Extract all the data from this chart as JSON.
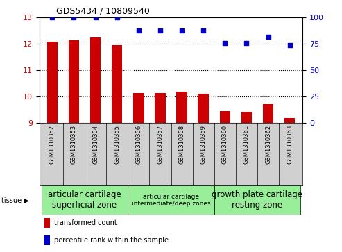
{
  "title": "GDS5434 / 10809540",
  "samples": [
    "GSM1310352",
    "GSM1310353",
    "GSM1310354",
    "GSM1310355",
    "GSM1310356",
    "GSM1310357",
    "GSM1310358",
    "GSM1310359",
    "GSM1310360",
    "GSM1310361",
    "GSM1310362",
    "GSM1310363"
  ],
  "bar_values": [
    12.1,
    12.15,
    12.25,
    11.97,
    10.15,
    10.13,
    10.2,
    10.12,
    9.45,
    9.43,
    9.72,
    9.2
  ],
  "dot_values": [
    100,
    100,
    100,
    100,
    88,
    88,
    88,
    88,
    76,
    76,
    82,
    74
  ],
  "ylim_left": [
    9,
    13
  ],
  "ylim_right": [
    0,
    100
  ],
  "yticks_left": [
    9,
    10,
    11,
    12,
    13
  ],
  "yticks_right": [
    0,
    25,
    50,
    75,
    100
  ],
  "bar_color": "#cc0000",
  "dot_color": "#0000cc",
  "bar_bottom": 9,
  "grid_lines": [
    10,
    11,
    12
  ],
  "tissue_groups": [
    {
      "label": "articular cartilage\nsuperficial zone",
      "start": 0,
      "end": 4,
      "font_size": 8.5
    },
    {
      "label": "articular cartilage\nintermediate/deep zones",
      "start": 4,
      "end": 8,
      "font_size": 6.5
    },
    {
      "label": "growth plate cartilage\nresting zone",
      "start": 8,
      "end": 12,
      "font_size": 8.5
    }
  ],
  "tissue_color": "#99ee99",
  "sample_bg_color": "#d0d0d0",
  "tissue_label": "tissue",
  "legend_bar_label": "transformed count",
  "legend_dot_label": "percentile rank within the sample",
  "bar_color_legend": "#cc0000",
  "dot_color_legend": "#0000cc"
}
